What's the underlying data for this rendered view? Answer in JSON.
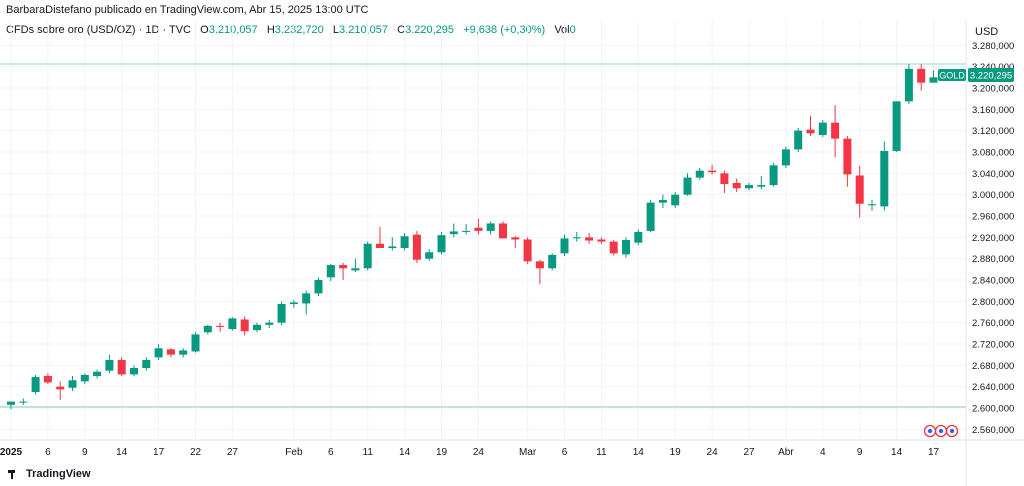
{
  "header": {
    "publisher": "BarbaraDistefano publicado en TradingView.com, Abr 15, 2025 13:00 UTC"
  },
  "legend": {
    "symbol": "CFDs sobre oro (USD/OZ) · 1D · TVC",
    "open_label": "O",
    "open": "3.210,057",
    "high_label": "H",
    "high": "3.232,720",
    "low_label": "L",
    "low": "3.210,057",
    "close_label": "C",
    "close": "3.220,295",
    "change": "+9,638 (+0,30%)",
    "vol_label": "Vol",
    "vol": "0"
  },
  "price_axis": {
    "currency": "USD"
  },
  "last_price": {
    "tag": "GOLD",
    "value": "3.220,295"
  },
  "branding": {
    "logo_text": "TradingView"
  },
  "colors": {
    "up": "#089981",
    "down": "#f23645",
    "grid": "#f0f3fa",
    "level": "#089981"
  },
  "chart_data": {
    "type": "candlestick",
    "title": "CFDs sobre oro (USD/OZ) · 1D · TVC",
    "ylim": [
      2540,
      3290
    ],
    "y_ticks": [
      2560,
      2600,
      2640,
      2680,
      2720,
      2760,
      2800,
      2840,
      2880,
      2920,
      2960,
      3000,
      3040,
      3080,
      3120,
      3160,
      3200,
      3240,
      3280
    ],
    "y_tick_labels": [
      "2.560,000",
      "2.600,000",
      "2.640,000",
      "2.680,000",
      "2.720,000",
      "2.760,000",
      "2.800,000",
      "2.840,000",
      "2.880,000",
      "2.920,000",
      "2.960,000",
      "3.000,000",
      "3.040,000",
      "3.080,000",
      "3.120,000",
      "3.160,000",
      "3.200,000",
      "3.240,000",
      "3.280,000"
    ],
    "x_ticks": [
      {
        "label": "2025",
        "index": 0,
        "bold": true
      },
      {
        "label": "6",
        "index": 3
      },
      {
        "label": "9",
        "index": 6
      },
      {
        "label": "14",
        "index": 9
      },
      {
        "label": "17",
        "index": 12
      },
      {
        "label": "22",
        "index": 15
      },
      {
        "label": "27",
        "index": 18
      },
      {
        "label": "Feb",
        "index": 23
      },
      {
        "label": "6",
        "index": 26
      },
      {
        "label": "11",
        "index": 29
      },
      {
        "label": "14",
        "index": 32
      },
      {
        "label": "19",
        "index": 35
      },
      {
        "label": "24",
        "index": 38
      },
      {
        "label": "Mar",
        "index": 42
      },
      {
        "label": "6",
        "index": 45
      },
      {
        "label": "11",
        "index": 48
      },
      {
        "label": "14",
        "index": 51
      },
      {
        "label": "19",
        "index": 54
      },
      {
        "label": "24",
        "index": 57
      },
      {
        "label": "27",
        "index": 60
      },
      {
        "label": "Abr",
        "index": 63
      },
      {
        "label": "4",
        "index": 66
      },
      {
        "label": "9",
        "index": 69
      },
      {
        "label": "14",
        "index": 72
      },
      {
        "label": "17",
        "index": 75
      }
    ],
    "levels": [
      2602,
      3245
    ],
    "candles": [
      {
        "o": 2606,
        "h": 2612,
        "l": 2598,
        "c": 2612
      },
      {
        "o": 2612,
        "h": 2618,
        "l": 2606,
        "c": 2612
      },
      {
        "o": 2630,
        "h": 2662,
        "l": 2625,
        "c": 2658
      },
      {
        "o": 2660,
        "h": 2665,
        "l": 2645,
        "c": 2648
      },
      {
        "o": 2640,
        "h": 2650,
        "l": 2615,
        "c": 2635
      },
      {
        "o": 2638,
        "h": 2660,
        "l": 2632,
        "c": 2652
      },
      {
        "o": 2650,
        "h": 2665,
        "l": 2645,
        "c": 2662
      },
      {
        "o": 2660,
        "h": 2672,
        "l": 2655,
        "c": 2668
      },
      {
        "o": 2670,
        "h": 2700,
        "l": 2665,
        "c": 2690
      },
      {
        "o": 2690,
        "h": 2695,
        "l": 2660,
        "c": 2663
      },
      {
        "o": 2663,
        "h": 2680,
        "l": 2660,
        "c": 2675
      },
      {
        "o": 2675,
        "h": 2695,
        "l": 2670,
        "c": 2690
      },
      {
        "o": 2695,
        "h": 2720,
        "l": 2690,
        "c": 2712
      },
      {
        "o": 2710,
        "h": 2712,
        "l": 2695,
        "c": 2700
      },
      {
        "o": 2700,
        "h": 2712,
        "l": 2695,
        "c": 2708
      },
      {
        "o": 2706,
        "h": 2742,
        "l": 2704,
        "c": 2738
      },
      {
        "o": 2742,
        "h": 2756,
        "l": 2738,
        "c": 2754
      },
      {
        "o": 2754,
        "h": 2760,
        "l": 2743,
        "c": 2752
      },
      {
        "o": 2748,
        "h": 2770,
        "l": 2745,
        "c": 2768
      },
      {
        "o": 2766,
        "h": 2772,
        "l": 2736,
        "c": 2744
      },
      {
        "o": 2746,
        "h": 2760,
        "l": 2742,
        "c": 2756
      },
      {
        "o": 2756,
        "h": 2765,
        "l": 2750,
        "c": 2760
      },
      {
        "o": 2760,
        "h": 2800,
        "l": 2755,
        "c": 2795
      },
      {
        "o": 2795,
        "h": 2802,
        "l": 2788,
        "c": 2798
      },
      {
        "o": 2796,
        "h": 2820,
        "l": 2775,
        "c": 2815
      },
      {
        "o": 2815,
        "h": 2845,
        "l": 2810,
        "c": 2840
      },
      {
        "o": 2845,
        "h": 2870,
        "l": 2838,
        "c": 2868
      },
      {
        "o": 2868,
        "h": 2872,
        "l": 2840,
        "c": 2862
      },
      {
        "o": 2858,
        "h": 2880,
        "l": 2855,
        "c": 2862
      },
      {
        "o": 2862,
        "h": 2912,
        "l": 2858,
        "c": 2908
      },
      {
        "o": 2908,
        "h": 2940,
        "l": 2900,
        "c": 2900
      },
      {
        "o": 2900,
        "h": 2920,
        "l": 2895,
        "c": 2903
      },
      {
        "o": 2900,
        "h": 2928,
        "l": 2895,
        "c": 2922
      },
      {
        "o": 2925,
        "h": 2932,
        "l": 2872,
        "c": 2878
      },
      {
        "o": 2880,
        "h": 2898,
        "l": 2876,
        "c": 2892
      },
      {
        "o": 2892,
        "h": 2930,
        "l": 2888,
        "c": 2924
      },
      {
        "o": 2926,
        "h": 2946,
        "l": 2920,
        "c": 2931
      },
      {
        "o": 2931,
        "h": 2945,
        "l": 2925,
        "c": 2932
      },
      {
        "o": 2938,
        "h": 2955,
        "l": 2925,
        "c": 2932
      },
      {
        "o": 2932,
        "h": 2950,
        "l": 2925,
        "c": 2946
      },
      {
        "o": 2946,
        "h": 2950,
        "l": 2925,
        "c": 2918
      },
      {
        "o": 2920,
        "h": 2922,
        "l": 2900,
        "c": 2916
      },
      {
        "o": 2916,
        "h": 2920,
        "l": 2870,
        "c": 2875
      },
      {
        "o": 2875,
        "h": 2878,
        "l": 2832,
        "c": 2862
      },
      {
        "o": 2862,
        "h": 2890,
        "l": 2858,
        "c": 2887
      },
      {
        "o": 2890,
        "h": 2925,
        "l": 2885,
        "c": 2918
      },
      {
        "o": 2918,
        "h": 2930,
        "l": 2912,
        "c": 2920
      },
      {
        "o": 2920,
        "h": 2928,
        "l": 2908,
        "c": 2914
      },
      {
        "o": 2916,
        "h": 2920,
        "l": 2908,
        "c": 2912
      },
      {
        "o": 2912,
        "h": 2915,
        "l": 2886,
        "c": 2890
      },
      {
        "o": 2888,
        "h": 2920,
        "l": 2882,
        "c": 2915
      },
      {
        "o": 2910,
        "h": 2935,
        "l": 2905,
        "c": 2930
      },
      {
        "o": 2932,
        "h": 2990,
        "l": 2930,
        "c": 2985
      },
      {
        "o": 2985,
        "h": 3000,
        "l": 2975,
        "c": 2990
      },
      {
        "o": 2980,
        "h": 3005,
        "l": 2975,
        "c": 3000
      },
      {
        "o": 3000,
        "h": 3040,
        "l": 2998,
        "c": 3032
      },
      {
        "o": 3032,
        "h": 3050,
        "l": 3028,
        "c": 3045
      },
      {
        "o": 3045,
        "h": 3056,
        "l": 3038,
        "c": 3042
      },
      {
        "o": 3040,
        "h": 3045,
        "l": 3003,
        "c": 3020
      },
      {
        "o": 3022,
        "h": 3030,
        "l": 3005,
        "c": 3012
      },
      {
        "o": 3012,
        "h": 3022,
        "l": 3008,
        "c": 3018
      },
      {
        "o": 3015,
        "h": 3035,
        "l": 3010,
        "c": 3018
      },
      {
        "o": 3018,
        "h": 3060,
        "l": 3015,
        "c": 3055
      },
      {
        "o": 3055,
        "h": 3090,
        "l": 3050,
        "c": 3085
      },
      {
        "o": 3085,
        "h": 3125,
        "l": 3080,
        "c": 3120
      },
      {
        "o": 3122,
        "h": 3148,
        "l": 3110,
        "c": 3115
      },
      {
        "o": 3112,
        "h": 3140,
        "l": 3108,
        "c": 3135
      },
      {
        "o": 3135,
        "h": 3168,
        "l": 3070,
        "c": 3105
      },
      {
        "o": 3105,
        "h": 3110,
        "l": 3015,
        "c": 3038
      },
      {
        "o": 3036,
        "h": 3054,
        "l": 2957,
        "c": 2983
      },
      {
        "o": 2980,
        "h": 2990,
        "l": 2970,
        "c": 2982
      },
      {
        "o": 2978,
        "h": 3100,
        "l": 2970,
        "c": 3082
      },
      {
        "o": 3082,
        "h": 3175,
        "l": 3080,
        "c": 3175
      },
      {
        "o": 3175,
        "h": 3245,
        "l": 3170,
        "c": 3236
      },
      {
        "o": 3236,
        "h": 3245,
        "l": 3195,
        "c": 3210
      },
      {
        "o": 3210,
        "h": 3233,
        "l": 3210,
        "c": 3220
      }
    ]
  }
}
